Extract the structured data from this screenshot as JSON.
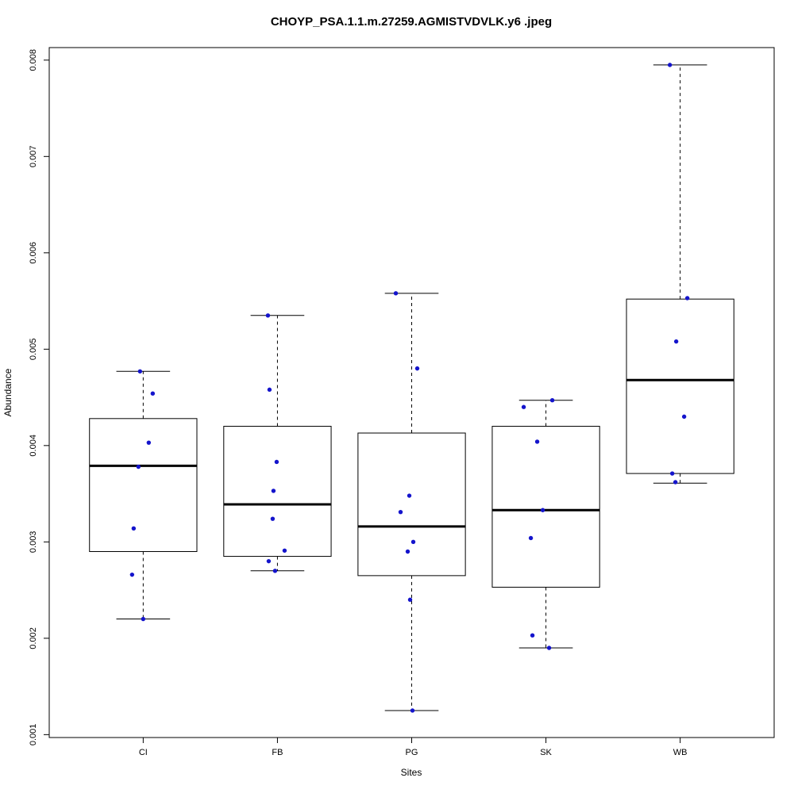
{
  "title": "CHOYP_PSA.1.1.m.27259.AGMISTVDVLK.y6 .jpeg",
  "chart_data": {
    "type": "boxplot",
    "title": "CHOYP_PSA.1.1.m.27259.AGMISTVDVLK.y6 .jpeg",
    "xlabel": "Sites",
    "ylabel": "Abundance",
    "categories": [
      "CI",
      "FB",
      "PG",
      "SK",
      "WB"
    ],
    "ylim": [
      0.00097,
      0.00813
    ],
    "xlim": [
      0.3,
      5.7
    ],
    "grid": false,
    "legend": "none",
    "point_color": "#1414CC",
    "box_stroke_color": "#000000",
    "yticks": [
      {
        "value": 0.001,
        "label": "0.001"
      },
      {
        "value": 0.002,
        "label": "0.002"
      },
      {
        "value": 0.003,
        "label": "0.003"
      },
      {
        "value": 0.004,
        "label": "0.004"
      },
      {
        "value": 0.005,
        "label": "0.005"
      },
      {
        "value": 0.006,
        "label": "0.006"
      },
      {
        "value": 0.007,
        "label": "0.007"
      },
      {
        "value": 0.008,
        "label": "0.008"
      }
    ],
    "series": [
      {
        "name": "CI",
        "position": 1,
        "lower_whisker": 0.0022,
        "q1": 0.0029,
        "median": 0.00379,
        "q3": 0.00428,
        "upper_whisker": 0.00477,
        "points": [
          {
            "value": 0.00477,
            "dx": -4
          },
          {
            "value": 0.00454,
            "dx": 12
          },
          {
            "value": 0.00403,
            "dx": 7
          },
          {
            "value": 0.00378,
            "dx": -6
          },
          {
            "value": 0.00314,
            "dx": -12
          },
          {
            "value": 0.00266,
            "dx": -14
          },
          {
            "value": 0.0022,
            "dx": 0
          }
        ]
      },
      {
        "name": "FB",
        "position": 2,
        "lower_whisker": 0.0027,
        "q1": 0.00285,
        "median": 0.00339,
        "q3": 0.0042,
        "upper_whisker": 0.00535,
        "points": [
          {
            "value": 0.00535,
            "dx": -12
          },
          {
            "value": 0.00458,
            "dx": -10
          },
          {
            "value": 0.00383,
            "dx": -1
          },
          {
            "value": 0.00353,
            "dx": -5
          },
          {
            "value": 0.00324,
            "dx": -6
          },
          {
            "value": 0.00291,
            "dx": 9
          },
          {
            "value": 0.0028,
            "dx": -11
          },
          {
            "value": 0.0027,
            "dx": -3
          }
        ]
      },
      {
        "name": "PG",
        "position": 3,
        "lower_whisker": 0.00125,
        "q1": 0.00265,
        "median": 0.00316,
        "q3": 0.00413,
        "upper_whisker": 0.00558,
        "points": [
          {
            "value": 0.00558,
            "dx": -20
          },
          {
            "value": 0.0048,
            "dx": 7
          },
          {
            "value": 0.00348,
            "dx": -3
          },
          {
            "value": 0.00331,
            "dx": -14
          },
          {
            "value": 0.003,
            "dx": 2
          },
          {
            "value": 0.0029,
            "dx": -5
          },
          {
            "value": 0.0024,
            "dx": -2
          },
          {
            "value": 0.00125,
            "dx": 1
          }
        ]
      },
      {
        "name": "SK",
        "position": 4,
        "lower_whisker": 0.0019,
        "q1": 0.00253,
        "median": 0.00333,
        "q3": 0.0042,
        "upper_whisker": 0.00447,
        "points": [
          {
            "value": 0.0044,
            "dx": -28
          },
          {
            "value": 0.00447,
            "dx": 8
          },
          {
            "value": 0.00404,
            "dx": -11
          },
          {
            "value": 0.00333,
            "dx": -4
          },
          {
            "value": 0.00304,
            "dx": -19
          },
          {
            "value": 0.00203,
            "dx": -17
          },
          {
            "value": 0.0019,
            "dx": 4
          }
        ]
      },
      {
        "name": "WB",
        "position": 5,
        "lower_whisker": 0.00361,
        "q1": 0.00371,
        "median": 0.00468,
        "q3": 0.00552,
        "upper_whisker": 0.00795,
        "points": [
          {
            "value": 0.00795,
            "dx": -13
          },
          {
            "value": 0.00553,
            "dx": 9
          },
          {
            "value": 0.00508,
            "dx": -5
          },
          {
            "value": 0.0043,
            "dx": 5
          },
          {
            "value": 0.00371,
            "dx": -10
          },
          {
            "value": 0.00362,
            "dx": -6
          }
        ]
      }
    ]
  }
}
